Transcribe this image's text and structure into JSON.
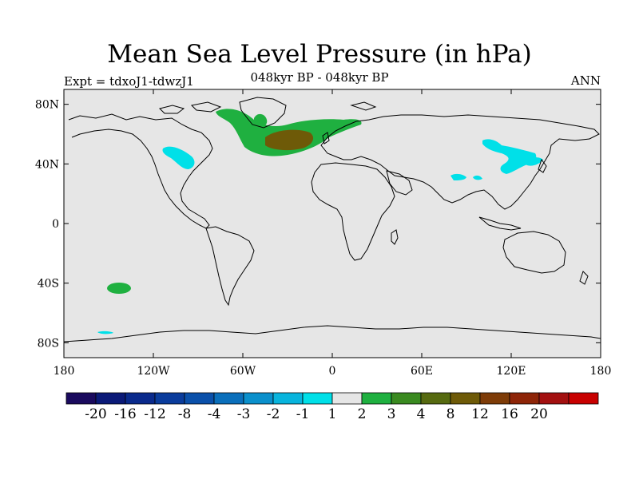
{
  "title": "Mean Sea Level Pressure (in hPa)",
  "left_string": "Expt = tdxoJ1-tdwzJ1",
  "center_string": "048kyr BP - 048kyr BP",
  "right_string": "ANN",
  "map": {
    "lon_range": [
      -180,
      180
    ],
    "lat_range": [
      -90,
      90
    ],
    "background_color": "#e6e6e6",
    "lat_ticks": [
      {
        "value": 80,
        "label": "80N"
      },
      {
        "value": 40,
        "label": "40N"
      },
      {
        "value": 0,
        "label": "0"
      },
      {
        "value": -40,
        "label": "40S"
      },
      {
        "value": -80,
        "label": "80S"
      }
    ],
    "lon_ticks": [
      {
        "value": -180,
        "label": "180"
      },
      {
        "value": -120,
        "label": "120W"
      },
      {
        "value": -60,
        "label": "60W"
      },
      {
        "value": 0,
        "label": "0"
      },
      {
        "value": 60,
        "label": "60E"
      },
      {
        "value": 120,
        "label": "120E"
      },
      {
        "value": 180,
        "label": "180"
      }
    ]
  },
  "colorbar": {
    "colors": [
      "#1a0a5e",
      "#0b1a78",
      "#0a2a8c",
      "#0a3c9c",
      "#0a50aa",
      "#0a6fbb",
      "#0a90cc",
      "#08b4dd",
      "#00e0e8",
      "#e6e6e6",
      "#1fb040",
      "#3a8a20",
      "#566a10",
      "#6e5a08",
      "#7e3c08",
      "#8e2508",
      "#a31010",
      "#c80000"
    ],
    "labels": [
      "-20",
      "-16",
      "-12",
      "-8",
      "-4",
      "-3",
      "-2",
      "-1",
      "1",
      "2",
      "3",
      "4",
      "8",
      "12",
      "16",
      "20"
    ]
  }
}
